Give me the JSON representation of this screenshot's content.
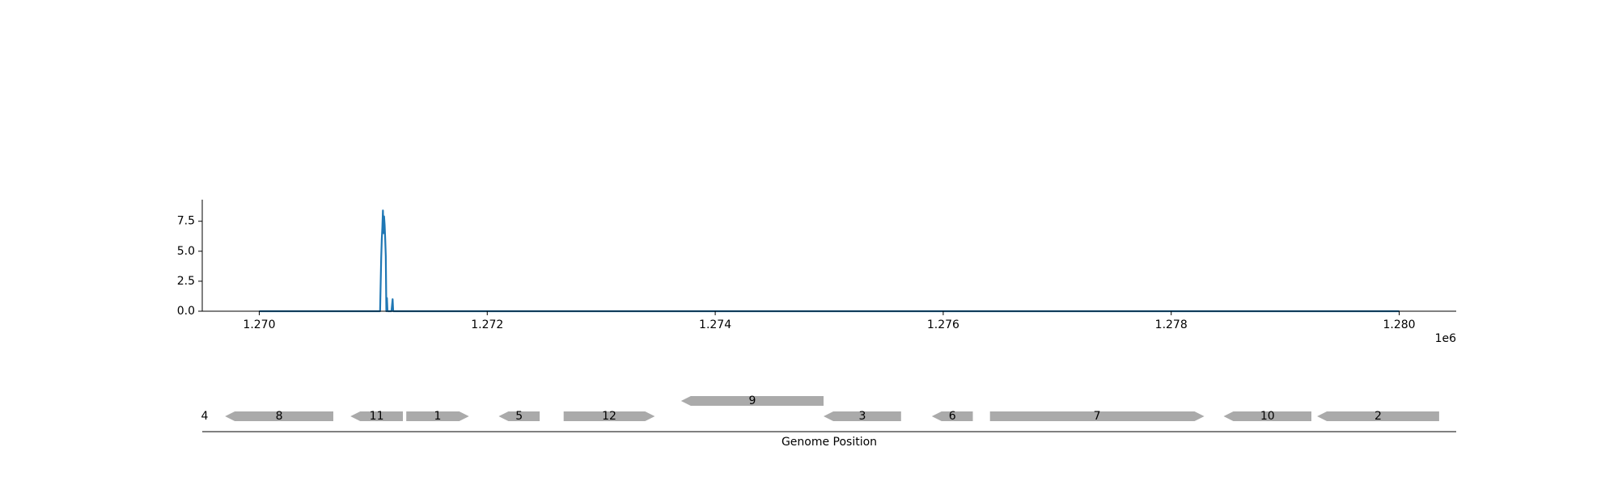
{
  "chart_data": [
    {
      "type": "line",
      "title": "",
      "xlabel": "",
      "ylabel": "",
      "xlim": [
        1269500,
        1280500
      ],
      "ylim": [
        0,
        9.3
      ],
      "xticks": [
        1270000,
        1272000,
        1274000,
        1276000,
        1278000,
        1280000
      ],
      "xtick_labels": [
        "1.270",
        "1.272",
        "1.274",
        "1.276",
        "1.278",
        "1.280"
      ],
      "yticks": [
        0,
        2.5,
        5,
        7.5
      ],
      "ytick_labels": [
        "0.0",
        "2.5",
        "5.0",
        "7.5"
      ],
      "offset_text": "1e6",
      "grid": false,
      "color": "#1f77b4",
      "series": [
        {
          "x": [
            1270000,
            1271060,
            1271070,
            1271075,
            1271080,
            1271085,
            1271090,
            1271095,
            1271100,
            1271105,
            1271110,
            1271115,
            1271120,
            1271125,
            1271130,
            1271140,
            1271150,
            1271160,
            1271170,
            1271175,
            1271180,
            1271190,
            1271200,
            1280000
          ],
          "y": [
            0,
            0,
            4.5,
            6.0,
            7.0,
            8.4,
            6.5,
            7.9,
            7.2,
            6.0,
            4.6,
            0,
            1.1,
            0,
            0,
            0,
            0,
            0,
            1.0,
            0,
            0,
            0,
            0,
            0
          ]
        }
      ]
    },
    {
      "type": "gene-track",
      "xlabel": "Genome Position",
      "color": "#aaaaaa",
      "left_label": "4",
      "genes": [
        {
          "name": "8",
          "start": 1269700,
          "end": 1270650,
          "strand": "-",
          "row": 0
        },
        {
          "name": "11",
          "start": 1270800,
          "end": 1271260,
          "strand": "-",
          "row": 0
        },
        {
          "name": "1",
          "start": 1271290,
          "end": 1271840,
          "strand": "+",
          "row": 0
        },
        {
          "name": "5",
          "start": 1272100,
          "end": 1272460,
          "strand": "-",
          "row": 0
        },
        {
          "name": "12",
          "start": 1272670,
          "end": 1273470,
          "strand": "+",
          "row": 0
        },
        {
          "name": "9",
          "start": 1273700,
          "end": 1274950,
          "strand": "-",
          "row": 1
        },
        {
          "name": "3",
          "start": 1274950,
          "end": 1275630,
          "strand": "-",
          "row": 0
        },
        {
          "name": "6",
          "start": 1275900,
          "end": 1276260,
          "strand": "-",
          "row": 0
        },
        {
          "name": "7",
          "start": 1276410,
          "end": 1278290,
          "strand": "+",
          "row": 0
        },
        {
          "name": "10",
          "start": 1278460,
          "end": 1279230,
          "strand": "-",
          "row": 0
        },
        {
          "name": "2",
          "start": 1279280,
          "end": 1280350,
          "strand": "-",
          "row": 0
        }
      ]
    }
  ]
}
